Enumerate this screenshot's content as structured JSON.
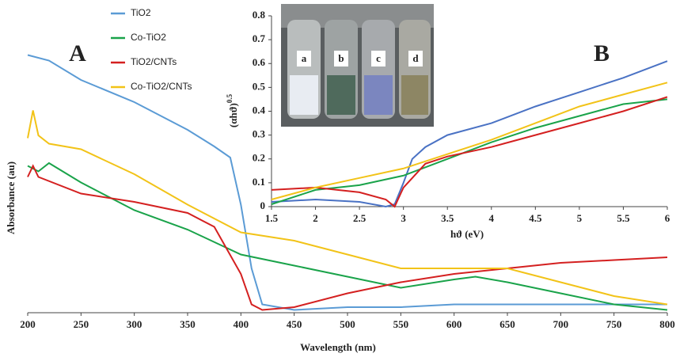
{
  "chart_data": [
    {
      "type": "line",
      "panel_label": "A",
      "x_label": "Wavelength (nm)",
      "y_label": "Absorbance (au)",
      "xlim": [
        200,
        800
      ],
      "xticks": [
        200,
        250,
        300,
        350,
        400,
        450,
        500,
        550,
        600,
        650,
        700,
        750,
        800
      ],
      "ylim": [
        0,
        1
      ],
      "legend": "upper-left",
      "series": [
        {
          "name": "TiO2",
          "color": "#5b9bd5",
          "x": [
            200,
            220,
            250,
            300,
            350,
            375,
            390,
            400,
            410,
            420,
            450,
            500,
            550,
            600,
            650,
            700,
            750,
            800
          ],
          "values": [
            0.93,
            0.91,
            0.84,
            0.76,
            0.66,
            0.6,
            0.56,
            0.39,
            0.16,
            0.03,
            0.01,
            0.02,
            0.02,
            0.03,
            0.03,
            0.03,
            0.03,
            0.03
          ]
        },
        {
          "name": "Co-TiO2",
          "color": "#1aa34a",
          "x": [
            200,
            210,
            220,
            250,
            300,
            350,
            400,
            450,
            500,
            550,
            600,
            620,
            650,
            700,
            750,
            800
          ],
          "values": [
            0.53,
            0.51,
            0.54,
            0.47,
            0.37,
            0.3,
            0.21,
            0.17,
            0.13,
            0.09,
            0.12,
            0.13,
            0.11,
            0.07,
            0.03,
            0.01
          ]
        },
        {
          "name": "TiO2/CNTs",
          "color": "#d42020",
          "x": [
            200,
            205,
            210,
            250,
            300,
            350,
            375,
            400,
            410,
            420,
            450,
            500,
            550,
            600,
            650,
            700,
            750,
            800
          ],
          "values": [
            0.49,
            0.53,
            0.49,
            0.43,
            0.4,
            0.36,
            0.31,
            0.14,
            0.03,
            0.01,
            0.02,
            0.07,
            0.11,
            0.14,
            0.16,
            0.18,
            0.19,
            0.2
          ]
        },
        {
          "name": "Co-TiO2/CNTs",
          "color": "#f2c318",
          "x": [
            200,
            205,
            210,
            220,
            250,
            300,
            350,
            400,
            450,
            500,
            550,
            600,
            650,
            700,
            750,
            800
          ],
          "values": [
            0.63,
            0.73,
            0.64,
            0.61,
            0.59,
            0.5,
            0.39,
            0.29,
            0.26,
            0.21,
            0.16,
            0.16,
            0.16,
            0.11,
            0.06,
            0.03
          ]
        }
      ]
    },
    {
      "type": "line",
      "panel_label": "B",
      "x_label": "hϑ (eV)",
      "y_label": "(αhϑ)",
      "y_label_sup": "0.5",
      "photo_labels": [
        "a",
        "b",
        "c",
        "d"
      ],
      "xlim": [
        1.5,
        6
      ],
      "xticks": [
        1.5,
        2,
        2.5,
        3,
        3.5,
        4,
        4.5,
        5,
        5.5,
        6
      ],
      "ylim": [
        0,
        0.8
      ],
      "yticks": [
        0,
        0.1,
        0.2,
        0.3,
        0.4,
        0.5,
        0.6,
        0.7,
        0.8
      ],
      "series": [
        {
          "color": "#4a72c4",
          "x": [
            1.5,
            2,
            2.5,
            2.8,
            2.9,
            3,
            3.1,
            3.25,
            3.5,
            4,
            4.5,
            5,
            5.5,
            6
          ],
          "values": [
            0.02,
            0.03,
            0.02,
            0.0,
            0.01,
            0.1,
            0.2,
            0.25,
            0.3,
            0.35,
            0.42,
            0.48,
            0.54,
            0.61
          ]
        },
        {
          "color": "#1aa34a",
          "x": [
            1.5,
            2,
            2.5,
            3,
            3.5,
            4,
            4.5,
            5,
            5.5,
            6
          ],
          "values": [
            0.01,
            0.07,
            0.09,
            0.13,
            0.2,
            0.27,
            0.33,
            0.38,
            0.43,
            0.45
          ]
        },
        {
          "color": "#d42020",
          "x": [
            1.5,
            2,
            2.5,
            2.8,
            2.9,
            3,
            3.25,
            3.5,
            4,
            4.5,
            5,
            5.5,
            6
          ],
          "values": [
            0.07,
            0.08,
            0.06,
            0.03,
            0.0,
            0.08,
            0.18,
            0.21,
            0.25,
            0.3,
            0.35,
            0.4,
            0.46
          ]
        },
        {
          "color": "#f2c318",
          "x": [
            1.5,
            2,
            2.5,
            3,
            3.5,
            4,
            4.5,
            5,
            5.5,
            6
          ],
          "values": [
            0.03,
            0.08,
            0.12,
            0.16,
            0.22,
            0.28,
            0.35,
            0.42,
            0.47,
            0.52
          ]
        }
      ]
    }
  ]
}
